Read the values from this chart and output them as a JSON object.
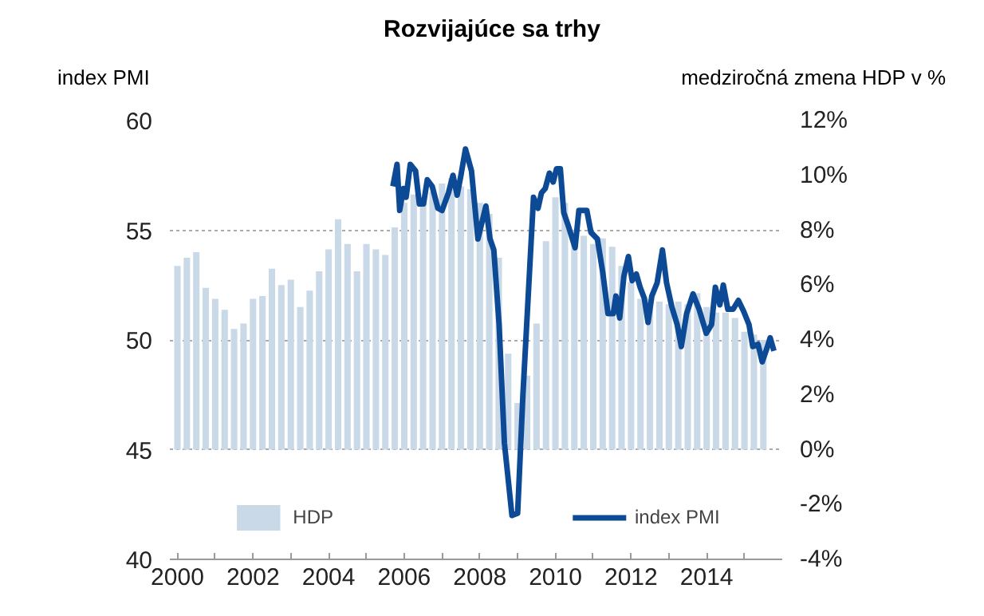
{
  "chart_data": {
    "type": "bar",
    "title": "Rozvijajúce sa trhy",
    "ylabel": "index PMI",
    "y2label": "medziročná zmena HDP v %",
    "xlim": [
      1999.8,
      2016
    ],
    "xticks": [
      2000,
      {
        "value": 2001,
        "label": null
      },
      2002,
      {
        "value": 2003,
        "label": null
      },
      2004,
      {
        "value": 2005,
        "label": null
      },
      2006,
      {
        "value": 2007,
        "label": null
      },
      2008,
      {
        "value": 2009,
        "label": null
      },
      2010,
      {
        "value": 2011,
        "label": null
      },
      2012,
      {
        "value": 2013,
        "label": null
      },
      2014,
      {
        "value": 2015,
        "label": null
      }
    ],
    "ylim": [
      40,
      60
    ],
    "yticks": [
      40,
      45,
      50,
      55,
      60
    ],
    "y2lim": [
      -4,
      12
    ],
    "y2ticks": [
      {
        "value": -4,
        "label": "-4%"
      },
      {
        "value": -2,
        "label": "-2%"
      },
      {
        "value": 0,
        "label": "0%"
      },
      {
        "value": 2,
        "label": "2%"
      },
      {
        "value": 4,
        "label": "4%"
      },
      {
        "value": 6,
        "label": "6%"
      },
      {
        "value": 8,
        "label": "8%"
      },
      {
        "value": 10,
        "label": "10%"
      },
      {
        "value": 12,
        "label": "12%"
      }
    ],
    "grid": "y",
    "legend": "bottom",
    "series": [
      {
        "name": "HDP",
        "axis": "y2",
        "color": "#c9d9e8",
        "x": [
          2000,
          2000.25,
          2000.5,
          2000.75,
          2001,
          2001.25,
          2001.5,
          2001.75,
          2002,
          2002.25,
          2002.5,
          2002.75,
          2003,
          2003.25,
          2003.5,
          2003.75,
          2004,
          2004.25,
          2004.5,
          2004.75,
          2005,
          2005.25,
          2005.5,
          2005.75,
          2006,
          2006.25,
          2006.5,
          2006.75,
          2007,
          2007.25,
          2007.5,
          2007.75,
          2008,
          2008.25,
          2008.5,
          2008.75,
          2009,
          2009.25,
          2009.5,
          2009.75,
          2010,
          2010.25,
          2010.5,
          2010.75,
          2011,
          2011.25,
          2011.5,
          2011.75,
          2012,
          2012.25,
          2012.5,
          2012.75,
          2013,
          2013.25,
          2013.5,
          2013.75,
          2014,
          2014.25,
          2014.5,
          2014.75,
          2015,
          2015.25,
          2015.5
        ],
        "values": [
          6.7,
          7.0,
          7.2,
          5.9,
          5.5,
          5.1,
          4.4,
          4.6,
          5.5,
          5.6,
          6.6,
          6.0,
          6.2,
          5.2,
          5.8,
          6.5,
          7.3,
          8.4,
          7.5,
          6.5,
          7.5,
          7.3,
          7.1,
          8.1,
          9.0,
          9.3,
          9.2,
          9.4,
          9.7,
          9.9,
          9.6,
          9.5,
          9.0,
          8.6,
          7.0,
          3.5,
          1.7,
          2.7,
          4.6,
          7.6,
          9.2,
          9.0,
          8.0,
          7.8,
          7.5,
          7.7,
          7.4,
          6.7,
          6.1,
          5.5,
          5.5,
          5.4,
          5.3,
          5.4,
          5.3,
          5.7,
          5.2,
          5.0,
          5.0,
          4.8,
          4.3,
          4.2,
          4.0
        ]
      },
      {
        "name": "index PMI",
        "type": "line",
        "axis": "y",
        "color": "#0d4a96",
        "line_style": "solid",
        "x": [
          2005.7,
          2005.81,
          2005.88,
          2005.98,
          2006.05,
          2006.16,
          2006.3,
          2006.4,
          2006.51,
          2006.61,
          2006.74,
          2006.89,
          2007.0,
          2007.17,
          2007.29,
          2007.4,
          2007.5,
          2007.62,
          2007.78,
          2007.95,
          2008.16,
          2008.27,
          2008.37,
          2008.51,
          2008.65,
          2008.85,
          2009.0,
          2009.14,
          2009.42,
          2009.54,
          2009.63,
          2009.73,
          2009.84,
          2009.94,
          2010.03,
          2010.13,
          2010.22,
          2010.34,
          2010.52,
          2010.62,
          2010.83,
          2010.94,
          2011.11,
          2011.25,
          2011.39,
          2011.53,
          2011.6,
          2011.7,
          2011.81,
          2011.93,
          2012.03,
          2012.14,
          2012.24,
          2012.35,
          2012.45,
          2012.55,
          2012.69,
          2012.83,
          2012.94,
          2013.08,
          2013.22,
          2013.33,
          2013.47,
          2013.64,
          2013.8,
          2013.99,
          2014.13,
          2014.23,
          2014.35,
          2014.44,
          2014.56,
          2014.7,
          2014.84,
          2014.98,
          2015.12,
          2015.22,
          2015.36,
          2015.47,
          2015.61,
          2015.68,
          2015.78
        ],
        "values": [
          57.0,
          58.0,
          55.9,
          56.9,
          56.5,
          58.0,
          57.7,
          56.2,
          56.2,
          57.3,
          57.0,
          56.0,
          55.9,
          56.7,
          57.5,
          56.6,
          57.5,
          58.7,
          57.7,
          54.6,
          56.1,
          54.6,
          54.1,
          50.7,
          45.3,
          42.0,
          42.1,
          47.5,
          56.5,
          56.0,
          56.7,
          56.9,
          57.6,
          57.2,
          57.8,
          57.8,
          55.8,
          55.2,
          54.2,
          55.9,
          55.9,
          54.9,
          54.6,
          53.1,
          51.2,
          51.2,
          52.0,
          51.0,
          52.9,
          53.8,
          52.7,
          53.0,
          52.4,
          51.9,
          50.8,
          52.0,
          52.6,
          54.1,
          52.6,
          51.5,
          50.7,
          49.7,
          51.2,
          52.1,
          51.4,
          50.3,
          50.7,
          52.4,
          51.6,
          52.5,
          51.4,
          51.4,
          51.8,
          51.3,
          50.7,
          49.7,
          49.8,
          49.0,
          49.7,
          50.1,
          49.5
        ]
      }
    ]
  }
}
